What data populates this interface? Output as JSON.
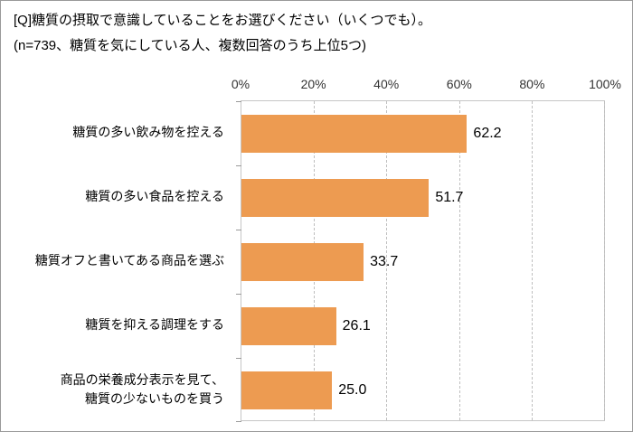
{
  "title": "[Q]糖質の摂取で意識していることをお選びください（いくつでも）。",
  "subtitle": "(n=739、糖質を気にしている人、複数回答のうち上位5つ)",
  "chart_data": {
    "type": "bar",
    "orientation": "horizontal",
    "title": "[Q]糖質の摂取で意識していることをお選びください（いくつでも）。",
    "subtitle": "(n=739、糖質を気にしている人、複数回答のうち上位5つ)",
    "categories": [
      "糖質の多い飲み物を控える",
      "糖質の多い食品を控える",
      "糖質オフと書いてある商品を選ぶ",
      "糖質を抑える調理をする",
      "商品の栄養成分表示を見て、\n糖質の少ないものを買う"
    ],
    "values": [
      62.2,
      51.7,
      33.7,
      26.1,
      25.0
    ],
    "value_labels": [
      "62.2",
      "51.7",
      "33.7",
      "26.1",
      "25.0"
    ],
    "xlabel": "",
    "ylabel": "",
    "xlim": [
      0,
      100
    ],
    "x_ticks": [
      "0%",
      "20%",
      "40%",
      "60%",
      "80%",
      "100%"
    ],
    "x_tick_values": [
      0,
      20,
      40,
      60,
      80,
      100
    ],
    "grid": true,
    "grid_style": "dashed-vertical",
    "legend": false,
    "bar_color": "#ed9b51",
    "axis_color": "#c6c6c6",
    "gridline_color": "#bfbfbf"
  }
}
